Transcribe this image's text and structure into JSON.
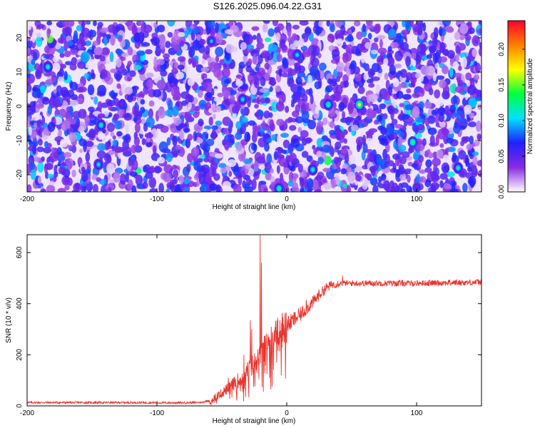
{
  "title": "S126.2025.096.04.22.G31",
  "chart_data": [
    {
      "type": "heatmap",
      "title": "S126.2025.096.04.22.G31",
      "xlabel": "Height of straight line (km)",
      "ylabel": "Frequency (Hz)",
      "xlim": [
        -200,
        150
      ],
      "ylim": [
        -25,
        25
      ],
      "x_ticks": [
        -200,
        -100,
        0,
        100
      ],
      "x_tick_labels": [
        "-200",
        "-100",
        "0",
        "100"
      ],
      "y_ticks": [
        -20,
        -10,
        0,
        10,
        20
      ],
      "y_tick_labels": [
        "-20",
        "-10",
        "0",
        "10",
        "20"
      ],
      "colorbar": {
        "label": "Normalized spectral amplitude",
        "range": [
          0,
          0.24
        ],
        "ticks": [
          0,
          0.05,
          0.1,
          0.15,
          0.2
        ],
        "tick_labels": [
          "0.00",
          "0.05",
          "0.10",
          "0.15",
          "0.20"
        ],
        "colors": [
          "#ffffff",
          "#8a2be2",
          "#2020ff",
          "#00e0ff",
          "#00ff40",
          "#ffff00",
          "#ff8000",
          "#ff0030"
        ]
      },
      "noise": {
        "mean": 0.045,
        "sd": 0.025,
        "spot_count": 2600
      },
      "hotspots": [
        {
          "x": 32,
          "y": 0.5,
          "v": 0.13
        },
        {
          "x": 56,
          "y": 0.5,
          "v": 0.17
        },
        {
          "x": 97,
          "y": -10.5,
          "v": 0.14
        },
        {
          "x": -184,
          "y": 11.5,
          "v": 0.12
        },
        {
          "x": -143,
          "y": -5.5,
          "v": 0.12
        },
        {
          "x": -145,
          "y": -17,
          "v": 0.11
        },
        {
          "x": -34,
          "y": 2,
          "v": 0.11
        },
        {
          "x": -6,
          "y": -24,
          "v": 0.13
        },
        {
          "x": 20,
          "y": -18.5,
          "v": 0.12
        },
        {
          "x": -58,
          "y": 19,
          "v": 0.1
        },
        {
          "x": 8,
          "y": 15,
          "v": 0.11
        },
        {
          "x": 132,
          "y": -18,
          "v": 0.12
        }
      ]
    },
    {
      "type": "line",
      "xlabel": "Height of straight line (km)",
      "ylabel": "SNR (10 * v/v)",
      "xlim": [
        -200,
        150
      ],
      "ylim": [
        0,
        670
      ],
      "x_ticks": [
        -200,
        -100,
        0,
        100
      ],
      "x_tick_labels": [
        "-200",
        "-100",
        "0",
        "100"
      ],
      "y_ticks": [
        0,
        200,
        400,
        600
      ],
      "y_tick_labels": [
        "0",
        "200",
        "400",
        "600"
      ],
      "color": "#e8332d",
      "trend": [
        [
          -200,
          13
        ],
        [
          -160,
          13
        ],
        [
          -120,
          13
        ],
        [
          -80,
          12
        ],
        [
          -65,
          14
        ],
        [
          -58,
          25
        ],
        [
          -50,
          50
        ],
        [
          -45,
          70
        ],
        [
          -40,
          90
        ],
        [
          -35,
          110
        ],
        [
          -30,
          140
        ],
        [
          -25,
          170
        ],
        [
          -22,
          190
        ],
        [
          -20,
          200
        ],
        [
          -15,
          250
        ],
        [
          -10,
          275
        ],
        [
          -5,
          300
        ],
        [
          0,
          315
        ],
        [
          5,
          335
        ],
        [
          10,
          355
        ],
        [
          15,
          380
        ],
        [
          20,
          405
        ],
        [
          25,
          435
        ],
        [
          30,
          460
        ],
        [
          35,
          475
        ],
        [
          40,
          480
        ],
        [
          50,
          480
        ],
        [
          60,
          480
        ],
        [
          80,
          480
        ],
        [
          100,
          480
        ],
        [
          120,
          482
        ],
        [
          150,
          484
        ]
      ],
      "peaks": [
        {
          "x": -20.5,
          "y": 670
        },
        {
          "x": -19.5,
          "y": 560
        },
        {
          "x": -28,
          "y": 335
        },
        {
          "x": -27,
          "y": 300
        },
        {
          "x": -33,
          "y": 200
        },
        {
          "x": -45,
          "y": 110
        },
        {
          "x": -14,
          "y": 250
        },
        {
          "x": -12,
          "y": 310
        },
        {
          "x": -7,
          "y": 345
        },
        {
          "x": 15,
          "y": 415
        },
        {
          "x": 43,
          "y": 510
        }
      ]
    }
  ]
}
